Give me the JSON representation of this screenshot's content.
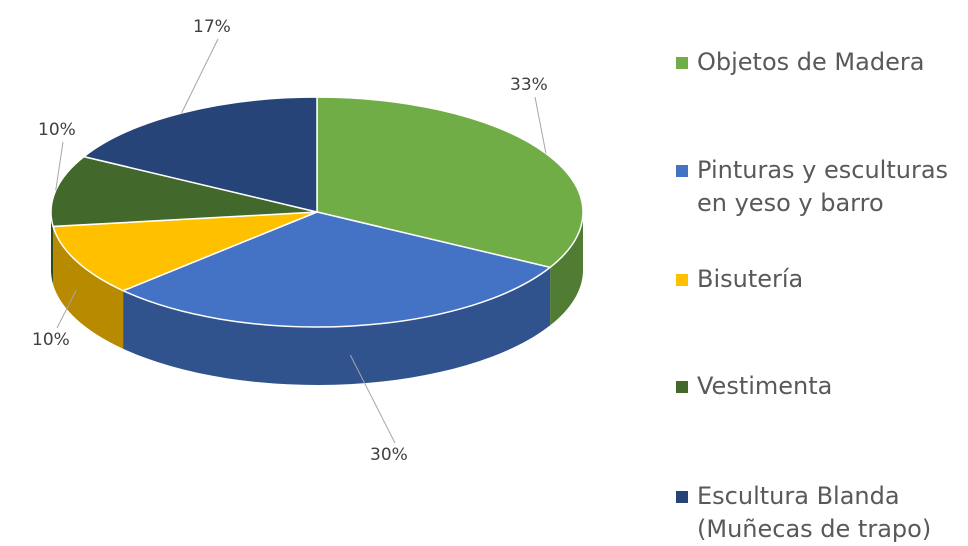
{
  "chart_data": {
    "type": "pie",
    "categories": [
      "Objetos de Madera",
      "Pinturas y esculturas en yeso y barro",
      "Bisutería",
      "Vestimenta",
      "Escultura Blanda (Muñecas de trapo)"
    ],
    "values": [
      33,
      30,
      10,
      10,
      17
    ],
    "value_labels": [
      "33%",
      "30%",
      "10%",
      "10%",
      "17%"
    ],
    "colors": [
      "#70ad47",
      "#4472c4",
      "#ffc000",
      "#43682b",
      "#264478"
    ],
    "legend": "right"
  }
}
